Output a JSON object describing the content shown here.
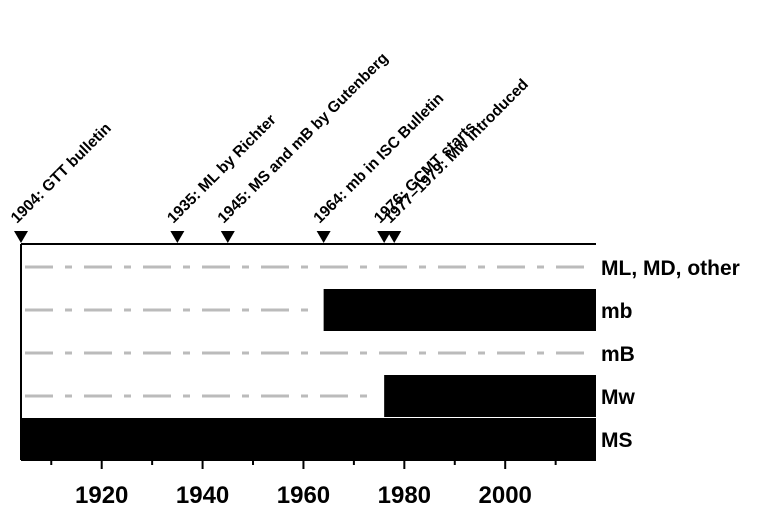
{
  "chart_data": {
    "type": "timeline",
    "title": "",
    "xlabel": "",
    "ylabel": "",
    "xlim": [
      1904,
      2018
    ],
    "x_ticks": [
      1920,
      1940,
      1960,
      1980,
      2000
    ],
    "x_ticks_minor": [
      1910,
      1930,
      1950,
      1970,
      1990,
      2010
    ],
    "rows": [
      {
        "label": "ML, MD, other",
        "bars": []
      },
      {
        "label": "mb",
        "bars": [
          [
            1964,
            2018
          ]
        ]
      },
      {
        "label": "mB",
        "bars": []
      },
      {
        "label": "Mw",
        "bars": [
          [
            1976,
            2018
          ]
        ]
      },
      {
        "label": "MS",
        "bars": [
          [
            1904,
            2018
          ]
        ]
      }
    ],
    "events": [
      {
        "year": 1904,
        "label": "1904: GTT bulletin"
      },
      {
        "year": 1935,
        "label": "1935: ML by Richter"
      },
      {
        "year": 1945,
        "label": "1945: MS and mB by Gutenberg"
      },
      {
        "year": 1964,
        "label": "1964: mb in ISC Bulletin"
      },
      {
        "year": 1976,
        "label": "1976: GCMT starts"
      },
      {
        "year": 1978,
        "label": "1977–1979: Mw introduced"
      }
    ],
    "colors": {
      "bar": "#000000",
      "dash": "#bbbbbb",
      "marker": "#000000"
    }
  }
}
